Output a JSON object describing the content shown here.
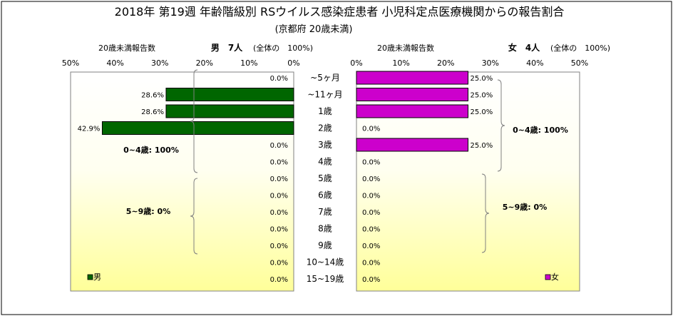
{
  "chart_data": {
    "type": "bar",
    "title": "2018年 第19週 年齢階級別 RSウイルス感染症患者 小児科定点医療機関からの報告割合",
    "subtitle": "(京都府 20歳未満)",
    "categories": [
      "~5ヶ月",
      "~11ヶ月",
      "1歳",
      "2歳",
      "3歳",
      "4歳",
      "5歳",
      "6歳",
      "7歳",
      "8歳",
      "9歳",
      "10~14歳",
      "15~19歳"
    ],
    "axis_ticks": [
      "50%",
      "40%",
      "30%",
      "20%",
      "10%",
      "0%"
    ],
    "axis_ticks_right": [
      "0%",
      "10%",
      "20%",
      "30%",
      "40%",
      "50%"
    ],
    "xlim": [
      0,
      50
    ],
    "grid": false,
    "series": [
      {
        "name": "男",
        "header_label": "20歳未満報告数",
        "header_count": "男　7人",
        "header_total": "(全体の　100%)",
        "values": [
          0.0,
          28.6,
          28.6,
          42.9,
          0.0,
          0.0,
          0.0,
          0.0,
          0.0,
          0.0,
          0.0,
          0.0,
          0.0
        ],
        "value_labels": [
          "0.0%",
          "28.6%",
          "28.6%",
          "42.9%",
          "0.0%",
          "0.0%",
          "0.0%",
          "0.0%",
          "0.0%",
          "0.0%",
          "0.0%",
          "0.0%",
          "0.0%"
        ],
        "color": "#006600",
        "groups": [
          {
            "label": "0~4歳: 100%",
            "from": 0,
            "to": 5
          },
          {
            "label": "5~9歳: 0%",
            "from": 6,
            "to": 10
          }
        ]
      },
      {
        "name": "女",
        "header_label": "20歳未満報告数",
        "header_count": "女　4人",
        "header_total": "(全体の　100%)",
        "values": [
          25.0,
          25.0,
          25.0,
          0.0,
          25.0,
          0.0,
          0.0,
          0.0,
          0.0,
          0.0,
          0.0,
          0.0,
          0.0
        ],
        "value_labels": [
          "25.0%",
          "25.0%",
          "25.0%",
          "0.0%",
          "25.0%",
          "0.0%",
          "0.0%",
          "0.0%",
          "0.0%",
          "0.0%",
          "0.0%",
          "0.0%",
          "0.0%"
        ],
        "color": "#cc00cc",
        "groups": [
          {
            "label": "0~4歳: 100%",
            "from": 0,
            "to": 5
          },
          {
            "label": "5~9歳: 0%",
            "from": 6,
            "to": 10
          }
        ]
      }
    ],
    "legend": [
      "男",
      "女"
    ],
    "legend_placement": "bottom-left / bottom-right",
    "colors": {
      "panel_top": "#ffffff",
      "panel_bottom": "#ffff99",
      "male": "#006600",
      "female": "#cc00cc"
    }
  }
}
